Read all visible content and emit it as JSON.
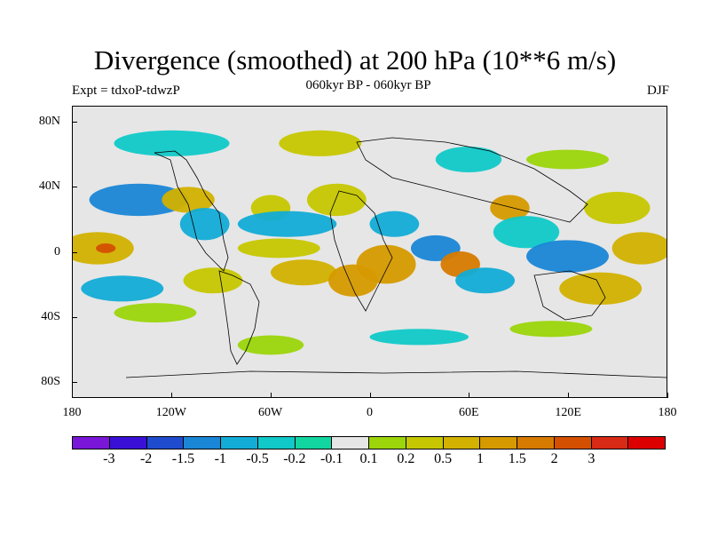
{
  "title": "Divergence (smoothed) at 200 hPa (10**6 m/s)",
  "subtitle": "060kyr BP - 060kyr BP",
  "experiment": "Expt = tdxoP-tdwzP",
  "season": "DJF",
  "y_axis": {
    "ticks": [
      {
        "label": "80N",
        "lat": 80
      },
      {
        "label": "40N",
        "lat": 40
      },
      {
        "label": "0",
        "lat": 0
      },
      {
        "label": "40S",
        "lat": -40
      },
      {
        "label": "80S",
        "lat": -80
      }
    ]
  },
  "x_axis": {
    "ticks": [
      {
        "label": "180",
        "lon": -180
      },
      {
        "label": "120W",
        "lon": -120
      },
      {
        "label": "60W",
        "lon": -60
      },
      {
        "label": "0",
        "lon": 0
      },
      {
        "label": "60E",
        "lon": 60
      },
      {
        "label": "120E",
        "lon": 120
      },
      {
        "label": "180",
        "lon": 180
      }
    ]
  },
  "colorbar": {
    "colors": [
      "#7a16d8",
      "#3a10d6",
      "#1f4ccf",
      "#1a86d6",
      "#12acd6",
      "#10c9c8",
      "#12d6a0",
      "#e6e6e6",
      "#9bd50a",
      "#c6c700",
      "#d2b100",
      "#d69a00",
      "#d67a00",
      "#d45000",
      "#d82a14",
      "#dc0000"
    ],
    "labels": [
      "-3",
      "-2",
      "-1.5",
      "-1",
      "-0.5",
      "-0.2",
      "-0.1",
      "0.1",
      "0.2",
      "0.5",
      "1",
      "1.5",
      "2",
      "3"
    ]
  },
  "map_data": {
    "neutral_color": "#e6e6e6",
    "blobs": [
      {
        "lon": -165,
        "lat": 5,
        "rx": 22,
        "ry": 10,
        "level": 3
      },
      {
        "lon": -160,
        "lat": 5,
        "rx": 6,
        "ry": 3,
        "level": 6
      },
      {
        "lon": -140,
        "lat": 35,
        "rx": 30,
        "ry": 10,
        "level": -4
      },
      {
        "lon": -110,
        "lat": 35,
        "rx": 16,
        "ry": 8,
        "level": 3
      },
      {
        "lon": -100,
        "lat": 20,
        "rx": 15,
        "ry": 10,
        "level": -3
      },
      {
        "lon": -150,
        "lat": -20,
        "rx": 25,
        "ry": 8,
        "level": -3
      },
      {
        "lon": -130,
        "lat": -35,
        "rx": 25,
        "ry": 6,
        "level": 1
      },
      {
        "lon": -95,
        "lat": -15,
        "rx": 18,
        "ry": 8,
        "level": 2
      },
      {
        "lon": -60,
        "lat": 30,
        "rx": 12,
        "ry": 8,
        "level": 2
      },
      {
        "lon": -50,
        "lat": 20,
        "rx": 30,
        "ry": 8,
        "level": -3
      },
      {
        "lon": -55,
        "lat": 5,
        "rx": 25,
        "ry": 6,
        "level": 2
      },
      {
        "lon": -40,
        "lat": -10,
        "rx": 20,
        "ry": 8,
        "level": 3
      },
      {
        "lon": -20,
        "lat": 35,
        "rx": 18,
        "ry": 10,
        "level": 2
      },
      {
        "lon": -10,
        "lat": -15,
        "rx": 15,
        "ry": 10,
        "level": 4
      },
      {
        "lon": 10,
        "lat": -5,
        "rx": 18,
        "ry": 12,
        "level": 4
      },
      {
        "lon": 15,
        "lat": 20,
        "rx": 15,
        "ry": 8,
        "level": -3
      },
      {
        "lon": 40,
        "lat": 5,
        "rx": 15,
        "ry": 8,
        "level": -4
      },
      {
        "lon": 55,
        "lat": -5,
        "rx": 12,
        "ry": 8,
        "level": 5
      },
      {
        "lon": 70,
        "lat": -15,
        "rx": 18,
        "ry": 8,
        "level": -3
      },
      {
        "lon": 85,
        "lat": 30,
        "rx": 12,
        "ry": 8,
        "level": 4
      },
      {
        "lon": 95,
        "lat": 15,
        "rx": 20,
        "ry": 10,
        "level": -2
      },
      {
        "lon": 120,
        "lat": 0,
        "rx": 25,
        "ry": 10,
        "level": -4
      },
      {
        "lon": 140,
        "lat": -20,
        "rx": 25,
        "ry": 10,
        "level": 3
      },
      {
        "lon": 150,
        "lat": 30,
        "rx": 20,
        "ry": 10,
        "level": 2
      },
      {
        "lon": 165,
        "lat": 5,
        "rx": 18,
        "ry": 10,
        "level": 3
      },
      {
        "lon": -120,
        "lat": 70,
        "rx": 35,
        "ry": 8,
        "level": -2
      },
      {
        "lon": -30,
        "lat": 70,
        "rx": 25,
        "ry": 8,
        "level": 2
      },
      {
        "lon": 60,
        "lat": 60,
        "rx": 20,
        "ry": 8,
        "level": -2
      },
      {
        "lon": 120,
        "lat": 60,
        "rx": 25,
        "ry": 6,
        "level": 1
      },
      {
        "lon": -60,
        "lat": -55,
        "rx": 20,
        "ry": 6,
        "level": 1
      },
      {
        "lon": 30,
        "lat": -50,
        "rx": 30,
        "ry": 5,
        "level": -2
      },
      {
        "lon": 110,
        "lat": -45,
        "rx": 25,
        "ry": 5,
        "level": 1
      }
    ]
  }
}
